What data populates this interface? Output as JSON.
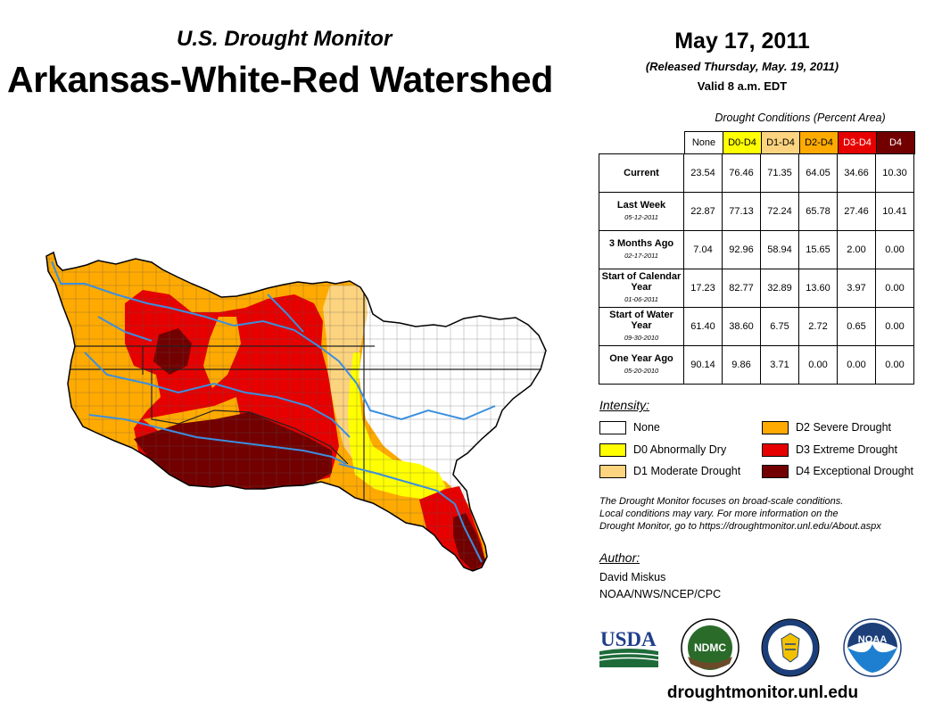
{
  "header": {
    "subtitle": "U.S. Drought Monitor",
    "title": "Arkansas-White-Red Watershed",
    "date": "May 17, 2011",
    "released": "(Released Thursday, May. 19, 2011)",
    "valid": "Valid 8 a.m. EDT"
  },
  "colors": {
    "none": "#ffffff",
    "d0": "#ffff00",
    "d1": "#fcd37f",
    "d2": "#ffaa00",
    "d3": "#e60000",
    "d4": "#730000",
    "river": "#3b8fdf"
  },
  "table": {
    "caption": "Drought Conditions (Percent Area)",
    "columns": [
      "None",
      "D0-D4",
      "D1-D4",
      "D2-D4",
      "D3-D4",
      "D4"
    ],
    "rows": [
      {
        "label": "Current",
        "date": "",
        "values": [
          "23.54",
          "76.46",
          "71.35",
          "64.05",
          "34.66",
          "10.30"
        ]
      },
      {
        "label": "Last Week",
        "date": "05-12-2011",
        "values": [
          "22.87",
          "77.13",
          "72.24",
          "65.78",
          "27.46",
          "10.41"
        ]
      },
      {
        "label": "3 Months Ago",
        "date": "02-17-2011",
        "values": [
          "7.04",
          "92.96",
          "58.94",
          "15.65",
          "2.00",
          "0.00"
        ]
      },
      {
        "label": "Start of Calendar Year",
        "date": "01-06-2011",
        "values": [
          "17.23",
          "82.77",
          "32.89",
          "13.60",
          "3.97",
          "0.00"
        ]
      },
      {
        "label": "Start of Water Year",
        "date": "09-30-2010",
        "values": [
          "61.40",
          "38.60",
          "6.75",
          "2.72",
          "0.65",
          "0.00"
        ]
      },
      {
        "label": "One Year Ago",
        "date": "05-20-2010",
        "values": [
          "90.14",
          "9.86",
          "3.71",
          "0.00",
          "0.00",
          "0.00"
        ]
      }
    ]
  },
  "legend": {
    "title": "Intensity:",
    "items": [
      {
        "label": "None",
        "color": "#ffffff"
      },
      {
        "label": "D0 Abnormally Dry",
        "color": "#ffff00"
      },
      {
        "label": "D1 Moderate Drought",
        "color": "#fcd37f"
      },
      {
        "label": "D2 Severe Drought",
        "color": "#ffaa00"
      },
      {
        "label": "D3 Extreme Drought",
        "color": "#e60000"
      },
      {
        "label": "D4 Exceptional Drought",
        "color": "#730000"
      }
    ]
  },
  "note": {
    "line1": "The Drought Monitor focuses on broad-scale conditions.",
    "line2": "Local conditions may vary. For more information on the",
    "line3": "Drought Monitor, go to https://droughtmonitor.unl.edu/About.aspx"
  },
  "author": {
    "title": "Author:",
    "name": "David Miskus",
    "org": "NOAA/NWS/NCEP/CPC"
  },
  "logos": {
    "usda": "USDA",
    "ndmc": "NDMC",
    "noaa": "NOAA"
  },
  "footer": {
    "url": "droughtmonitor.unl.edu"
  }
}
